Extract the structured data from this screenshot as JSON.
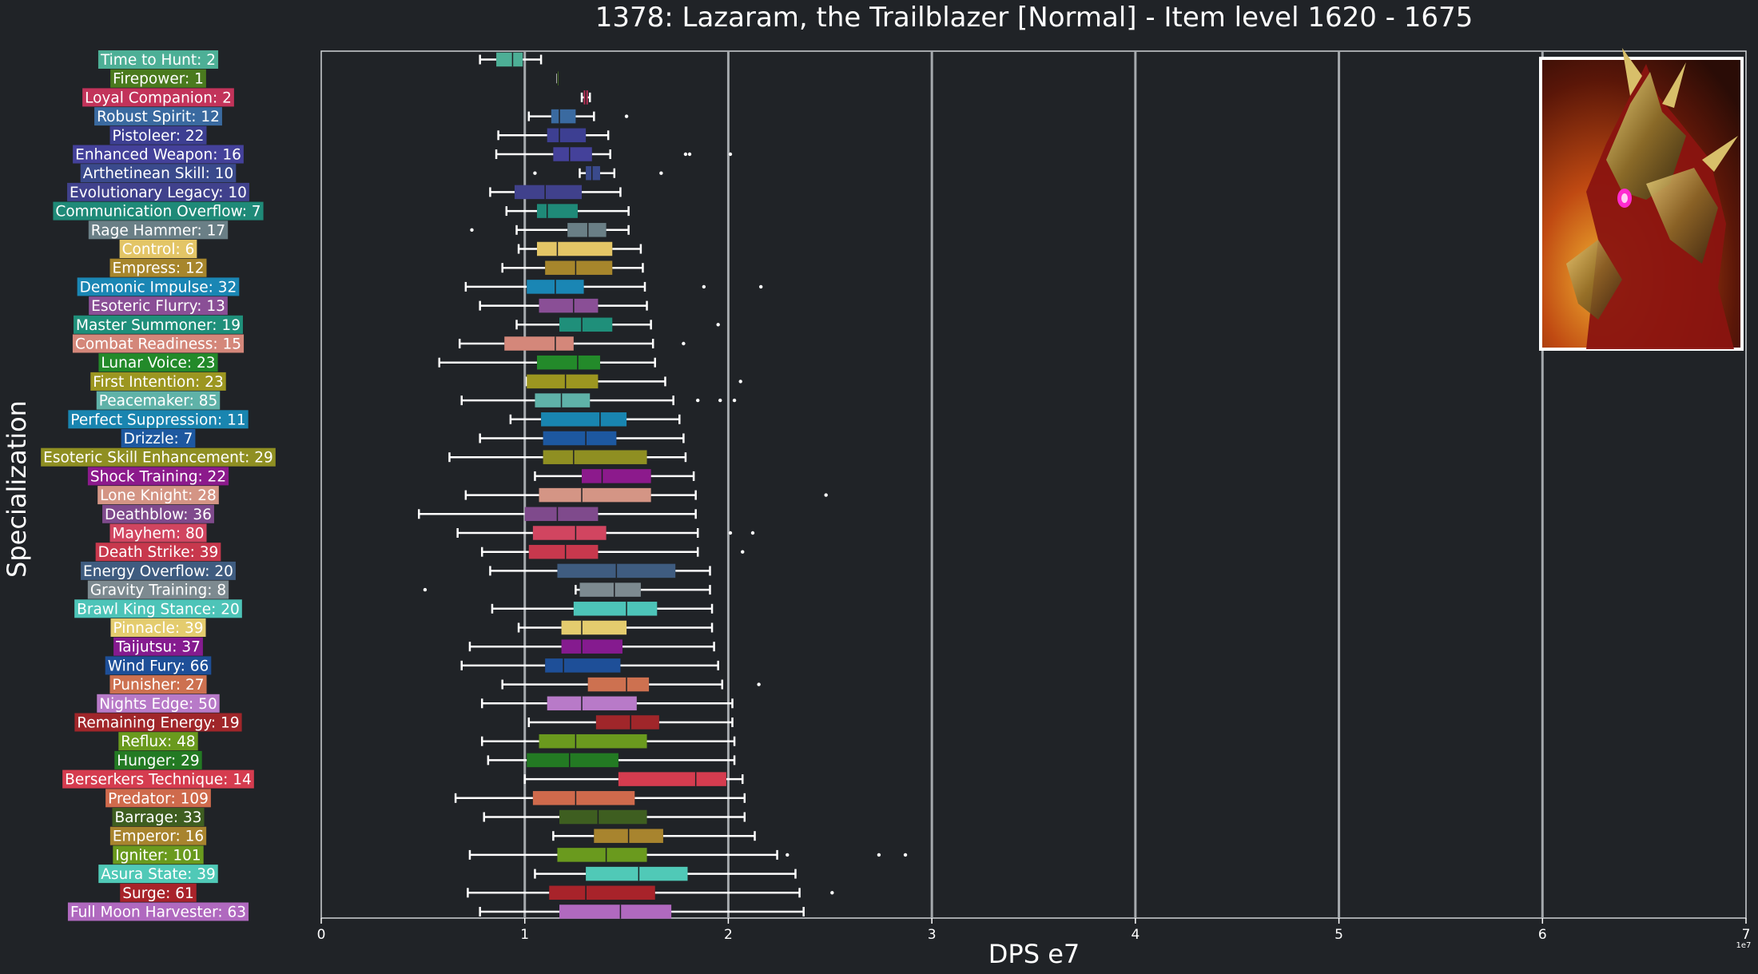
{
  "chart_data": {
    "type": "boxplot",
    "title": "1378: Lazaram, the Trailblazer [Normal] - Item level 1620 - 1675",
    "xlabel": "DPS e7",
    "ylabel": "Specialization",
    "x_offset_label": "1e7",
    "xlim": [
      0,
      7
    ],
    "xticks": [
      "0",
      "1",
      "2",
      "3",
      "4",
      "5",
      "6",
      "7"
    ],
    "grid": "vertical lines at 1-6",
    "boss_image": "boss-portrait",
    "series": [
      {
        "label": "Time to Hunt: 2",
        "color": "#4daf96",
        "stats": [
          0.78,
          0.86,
          0.94,
          0.99,
          1.08
        ],
        "outliers": []
      },
      {
        "label": "Firepower: 1",
        "color": "#4a7a1e",
        "stats": [
          1.16,
          1.16,
          1.16,
          1.16,
          1.16
        ],
        "outliers": []
      },
      {
        "label": "Loyal Companion: 2",
        "color": "#c2335a",
        "stats": [
          1.28,
          1.29,
          1.3,
          1.31,
          1.32
        ],
        "outliers": []
      },
      {
        "label": "Robust Spirit: 12",
        "color": "#3a6aa0",
        "stats": [
          1.02,
          1.13,
          1.17,
          1.25,
          1.34
        ],
        "outliers": [
          1.5
        ]
      },
      {
        "label": "Pistoleer: 22",
        "color": "#3d3f92",
        "stats": [
          0.87,
          1.11,
          1.17,
          1.3,
          1.41
        ],
        "outliers": []
      },
      {
        "label": "Enhanced Weapon: 16",
        "color": "#44419a",
        "stats": [
          0.86,
          1.14,
          1.22,
          1.33,
          1.42
        ],
        "outliers": [
          1.79,
          1.81,
          2.01
        ]
      },
      {
        "label": "Arthetinean Skill: 10",
        "color": "#3a4a8c",
        "stats": [
          1.27,
          1.3,
          1.33,
          1.37,
          1.44
        ],
        "outliers": [
          1.05,
          1.67
        ]
      },
      {
        "label": "Evolutionary Legacy: 10",
        "color": "#40418c",
        "stats": [
          0.83,
          0.95,
          1.1,
          1.28,
          1.47
        ],
        "outliers": []
      },
      {
        "label": "Communication Overflow: 7",
        "color": "#1f8a78",
        "stats": [
          0.91,
          1.06,
          1.11,
          1.26,
          1.51
        ],
        "outliers": []
      },
      {
        "label": "Rage Hammer: 17",
        "color": "#6a7f86",
        "stats": [
          0.96,
          1.21,
          1.31,
          1.4,
          1.51
        ],
        "outliers": [
          0.74
        ]
      },
      {
        "label": "Control: 6",
        "color": "#e3c566",
        "stats": [
          0.97,
          1.06,
          1.16,
          1.43,
          1.57
        ],
        "outliers": []
      },
      {
        "label": "Empress: 12",
        "color": "#a7862c",
        "stats": [
          0.89,
          1.1,
          1.25,
          1.43,
          1.58
        ],
        "outliers": []
      },
      {
        "label": "Demonic Impulse: 32",
        "color": "#1a86b4",
        "stats": [
          0.71,
          1.01,
          1.15,
          1.29,
          1.59
        ],
        "outliers": [
          1.88,
          2.16
        ]
      },
      {
        "label": "Esoteric Flurry: 13",
        "color": "#8a4f96",
        "stats": [
          0.78,
          1.07,
          1.24,
          1.36,
          1.6
        ],
        "outliers": []
      },
      {
        "label": "Master Summoner: 19",
        "color": "#1f8f7a",
        "stats": [
          0.96,
          1.17,
          1.28,
          1.43,
          1.62
        ],
        "outliers": [
          1.95
        ]
      },
      {
        "label": "Combat Readiness: 15",
        "color": "#d4877a",
        "stats": [
          0.68,
          0.9,
          1.15,
          1.24,
          1.63
        ],
        "outliers": [
          1.78
        ]
      },
      {
        "label": "Lunar Voice: 23",
        "color": "#238a2a",
        "stats": [
          0.58,
          1.06,
          1.26,
          1.37,
          1.64
        ],
        "outliers": []
      },
      {
        "label": "First Intention: 23",
        "color": "#9c9620",
        "stats": [
          1.01,
          1.01,
          1.2,
          1.36,
          1.69
        ],
        "outliers": [
          2.06
        ]
      },
      {
        "label": "Peacemaker: 85",
        "color": "#5fb2a8",
        "stats": [
          0.69,
          1.05,
          1.18,
          1.32,
          1.73
        ],
        "outliers": [
          1.85,
          1.96,
          2.03
        ]
      },
      {
        "label": "Perfect Suppression: 11",
        "color": "#1985b0",
        "stats": [
          0.93,
          1.08,
          1.37,
          1.5,
          1.76
        ],
        "outliers": []
      },
      {
        "label": "Drizzle: 7",
        "color": "#1d58a0",
        "stats": [
          0.78,
          1.09,
          1.3,
          1.45,
          1.78
        ],
        "outliers": []
      },
      {
        "label": "Esoteric Skill Enhancement: 29",
        "color": "#8f8f22",
        "stats": [
          0.63,
          1.09,
          1.24,
          1.6,
          1.79
        ],
        "outliers": []
      },
      {
        "label": "Shock Training: 22",
        "color": "#8c1a8c",
        "stats": [
          1.05,
          1.28,
          1.38,
          1.62,
          1.83
        ],
        "outliers": []
      },
      {
        "label": "Lone Knight: 28",
        "color": "#d49585",
        "stats": [
          0.71,
          1.07,
          1.28,
          1.62,
          1.84
        ],
        "outliers": [
          2.48
        ]
      },
      {
        "label": "Deathblow: 36",
        "color": "#7f4a8c",
        "stats": [
          0.48,
          1.0,
          1.16,
          1.36,
          1.84
        ],
        "outliers": []
      },
      {
        "label": "Mayhem: 80",
        "color": "#d14560",
        "stats": [
          0.67,
          1.04,
          1.25,
          1.4,
          1.85
        ],
        "outliers": [
          2.01,
          2.12
        ]
      },
      {
        "label": "Death Strike: 39",
        "color": "#c8384d",
        "stats": [
          0.79,
          1.02,
          1.2,
          1.36,
          1.85
        ],
        "outliers": [
          2.07
        ]
      },
      {
        "label": "Energy Overflow: 20",
        "color": "#3f5c80",
        "stats": [
          0.83,
          1.16,
          1.45,
          1.74,
          1.91
        ],
        "outliers": []
      },
      {
        "label": "Gravity Training: 8",
        "color": "#7d8a90",
        "stats": [
          1.25,
          1.27,
          1.44,
          1.57,
          1.91
        ],
        "outliers": [
          0.51
        ]
      },
      {
        "label": "Brawl King Stance: 20",
        "color": "#4dc4b8",
        "stats": [
          0.84,
          1.24,
          1.5,
          1.65,
          1.92
        ],
        "outliers": []
      },
      {
        "label": "Pinnacle: 39",
        "color": "#e4cc6e",
        "stats": [
          0.97,
          1.18,
          1.28,
          1.5,
          1.92
        ],
        "outliers": []
      },
      {
        "label": "Taijutsu: 37",
        "color": "#851b8f",
        "stats": [
          0.73,
          1.18,
          1.28,
          1.48,
          1.93
        ],
        "outliers": []
      },
      {
        "label": "Wind Fury: 66",
        "color": "#1e4f98",
        "stats": [
          0.69,
          1.1,
          1.19,
          1.47,
          1.95
        ],
        "outliers": []
      },
      {
        "label": "Punisher: 27",
        "color": "#cd7150",
        "stats": [
          0.89,
          1.31,
          1.5,
          1.61,
          1.97
        ],
        "outliers": [
          2.15
        ]
      },
      {
        "label": "Nights Edge: 50",
        "color": "#b87ac8",
        "stats": [
          0.79,
          1.11,
          1.28,
          1.55,
          2.02
        ],
        "outliers": []
      },
      {
        "label": "Remaining Energy: 19",
        "color": "#a0262a",
        "stats": [
          1.02,
          1.35,
          1.52,
          1.66,
          2.02
        ],
        "outliers": []
      },
      {
        "label": "Reflux: 48",
        "color": "#6a9a1e",
        "stats": [
          0.79,
          1.07,
          1.25,
          1.6,
          2.03
        ],
        "outliers": []
      },
      {
        "label": "Hunger: 29",
        "color": "#237a23",
        "stats": [
          0.82,
          1.01,
          1.22,
          1.46,
          2.03
        ],
        "outliers": []
      },
      {
        "label": "Berserkers Technique: 14",
        "color": "#d53c4f",
        "stats": [
          1.0,
          1.46,
          1.84,
          1.99,
          2.07
        ],
        "outliers": []
      },
      {
        "label": "Predator: 109",
        "color": "#cf6a4c",
        "stats": [
          0.66,
          1.04,
          1.25,
          1.54,
          2.08
        ],
        "outliers": []
      },
      {
        "label": "Barrage: 33",
        "color": "#3e5e20",
        "stats": [
          0.8,
          1.17,
          1.36,
          1.6,
          2.08
        ],
        "outliers": []
      },
      {
        "label": "Emperor: 16",
        "color": "#a8842e",
        "stats": [
          1.14,
          1.34,
          1.51,
          1.68,
          2.13
        ],
        "outliers": []
      },
      {
        "label": "Igniter: 101",
        "color": "#6a9a1e",
        "stats": [
          0.73,
          1.16,
          1.4,
          1.6,
          2.24
        ],
        "outliers": [
          2.29,
          2.74,
          2.87
        ]
      },
      {
        "label": "Asura State: 39",
        "color": "#50c9b7",
        "stats": [
          1.05,
          1.3,
          1.56,
          1.8,
          2.33
        ],
        "outliers": []
      },
      {
        "label": "Surge: 61",
        "color": "#a8232a",
        "stats": [
          0.72,
          1.12,
          1.3,
          1.64,
          2.35
        ],
        "outliers": [
          2.51
        ]
      },
      {
        "label": "Full Moon Harvester: 63",
        "color": "#b069bf",
        "stats": [
          0.78,
          1.17,
          1.47,
          1.72,
          2.37
        ],
        "outliers": []
      }
    ]
  }
}
